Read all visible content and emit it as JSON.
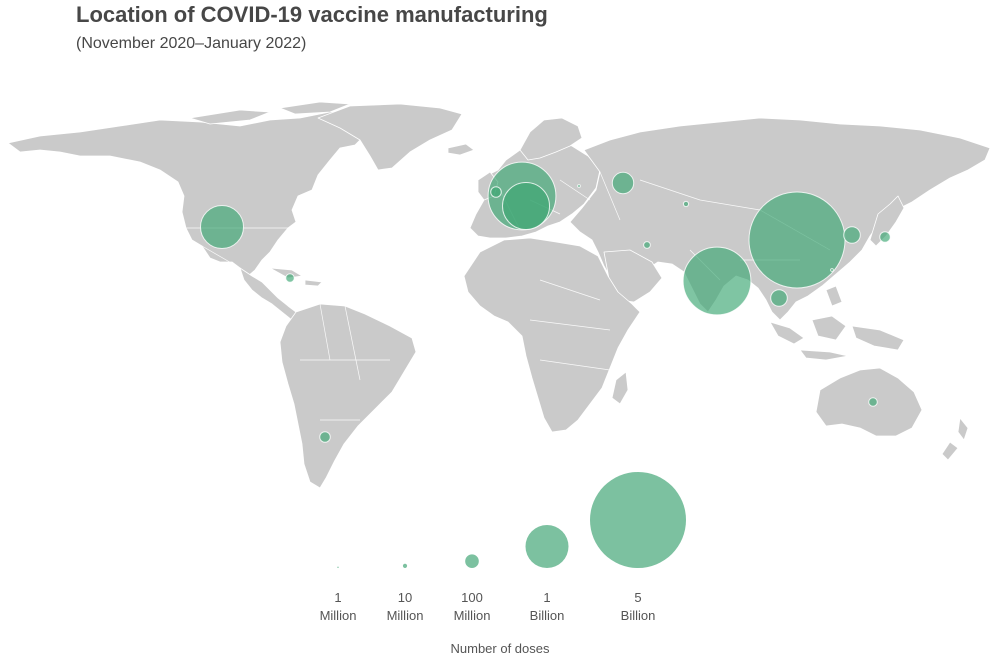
{
  "header": {
    "title": "Location of COVID-19 vaccine manufacturing",
    "subtitle": "(November 2020–January 2022)"
  },
  "colors": {
    "land": "#cacaca",
    "bubble": "#3aa671",
    "legend_bubble": "#7cc1a0",
    "text": "#474747"
  },
  "map": {
    "projection": "equirectangular world map",
    "locations": [
      {
        "name": "United States",
        "doses_millions": 1000
      },
      {
        "name": "Cuba",
        "doses_millions": 40
      },
      {
        "name": "Argentina",
        "doses_millions": 60
      },
      {
        "name": "United Kingdom",
        "doses_millions": 60
      },
      {
        "name": "Europe (EU)",
        "doses_millions": 2500
      },
      {
        "name": "Germany",
        "doses_millions": 1200
      },
      {
        "name": "Belarus",
        "doses_millions": 4
      },
      {
        "name": "Russia",
        "doses_millions": 250
      },
      {
        "name": "Kazakhstan",
        "doses_millions": 15
      },
      {
        "name": "Iran",
        "doses_millions": 25
      },
      {
        "name": "India",
        "doses_millions": 2500
      },
      {
        "name": "China",
        "doses_millions": 5000
      },
      {
        "name": "South Korea",
        "doses_millions": 150
      },
      {
        "name": "Japan",
        "doses_millions": 60
      },
      {
        "name": "Taiwan",
        "doses_millions": 4
      },
      {
        "name": "Thailand",
        "doses_millions": 150
      },
      {
        "name": "Australia",
        "doses_millions": 40
      }
    ]
  },
  "legend": {
    "title": "Number of doses",
    "items": [
      {
        "value_millions": 1,
        "num": "1",
        "unit": "Million"
      },
      {
        "value_millions": 10,
        "num": "10",
        "unit": "Million"
      },
      {
        "value_millions": 100,
        "num": "100",
        "unit": "Million"
      },
      {
        "value_millions": 1000,
        "num": "1",
        "unit": "Billion"
      },
      {
        "value_millions": 5000,
        "num": "5",
        "unit": "Billion"
      }
    ]
  }
}
